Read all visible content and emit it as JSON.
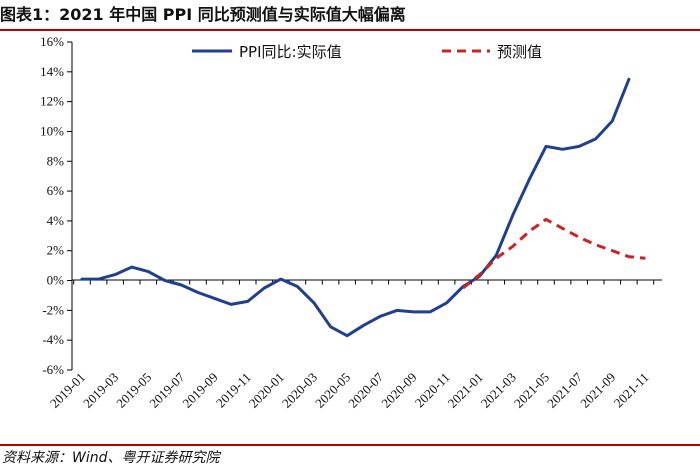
{
  "header": {
    "title": "图表1：2021 年中国 PPI 同比预测值与实际值大幅偏离"
  },
  "footer": {
    "source": "资料来源：Wind、粤开证券研究院"
  },
  "colors": {
    "actual": "#1f3f8f",
    "forecast": "#cc2222",
    "accent": "#c00000"
  },
  "chart_data": {
    "type": "line",
    "title": "2021 年中国 PPI 同比预测值与实际值大幅偏离",
    "xlabel": "",
    "ylabel": "",
    "ylim": [
      -6,
      16
    ],
    "ytick_step": 2,
    "ytick_labels": [
      "-6%",
      "-4%",
      "-2%",
      "0%",
      "2%",
      "4%",
      "6%",
      "8%",
      "10%",
      "12%",
      "14%",
      "16%"
    ],
    "xtick_labels": [
      "2019-01",
      "2019-03",
      "2019-05",
      "2019-07",
      "2019-09",
      "2019-11",
      "2020-01",
      "2020-03",
      "2020-05",
      "2020-07",
      "2020-09",
      "2020-11",
      "2021-01",
      "2021-03",
      "2021-05",
      "2021-07",
      "2021-09",
      "2021-11"
    ],
    "x": [
      "2019-01",
      "2019-02",
      "2019-03",
      "2019-04",
      "2019-05",
      "2019-06",
      "2019-07",
      "2019-08",
      "2019-09",
      "2019-10",
      "2019-11",
      "2019-12",
      "2020-01",
      "2020-02",
      "2020-03",
      "2020-04",
      "2020-05",
      "2020-06",
      "2020-07",
      "2020-08",
      "2020-09",
      "2020-10",
      "2020-11",
      "2020-12",
      "2021-01",
      "2021-02",
      "2021-03",
      "2021-04",
      "2021-05",
      "2021-06",
      "2021-07",
      "2021-08",
      "2021-09",
      "2021-10",
      "2021-11"
    ],
    "series": [
      {
        "name": "PPI同比:实际值",
        "style": "solid",
        "values": [
          0.1,
          0.1,
          0.4,
          0.9,
          0.6,
          0.0,
          -0.3,
          -0.8,
          -1.2,
          -1.6,
          -1.4,
          -0.5,
          0.1,
          -0.4,
          -1.5,
          -3.1,
          -3.7,
          -3.0,
          -2.4,
          -2.0,
          -2.1,
          -2.1,
          -1.5,
          -0.4,
          0.3,
          1.7,
          4.4,
          6.8,
          9.0,
          8.8,
          9.0,
          9.5,
          10.7,
          13.5,
          null
        ]
      },
      {
        "name": "预测值",
        "style": "dashed",
        "values": [
          null,
          null,
          null,
          null,
          null,
          null,
          null,
          null,
          null,
          null,
          null,
          null,
          null,
          null,
          null,
          null,
          null,
          null,
          null,
          null,
          null,
          null,
          null,
          -0.5,
          0.4,
          1.5,
          2.3,
          3.3,
          4.1,
          3.5,
          2.9,
          2.4,
          2.0,
          1.6,
          1.5
        ]
      }
    ],
    "legend": "top"
  }
}
